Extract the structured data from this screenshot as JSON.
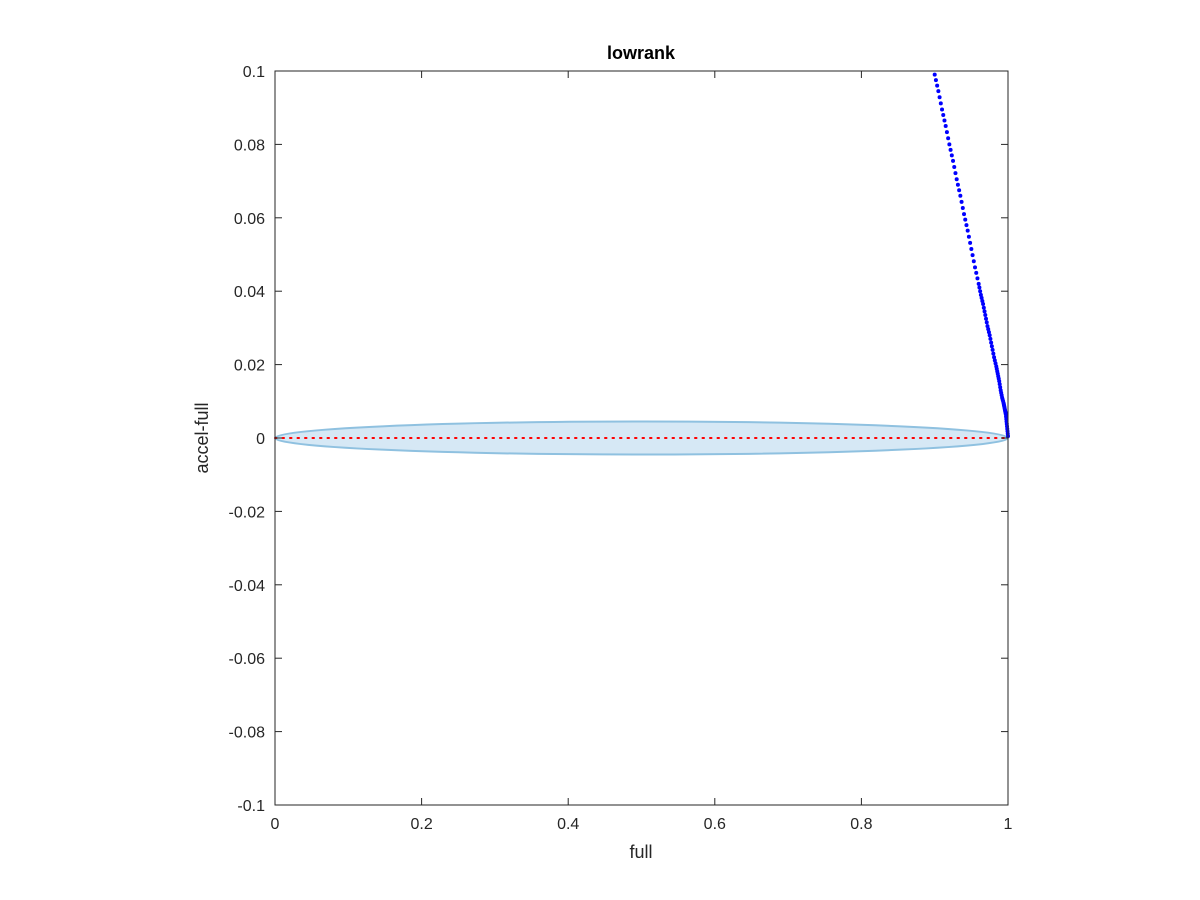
{
  "chart_data": {
    "type": "scatter",
    "title": "lowrank",
    "xlabel": "full",
    "ylabel": "accel-full",
    "xlim": [
      0,
      1
    ],
    "ylim": [
      -0.1,
      0.1
    ],
    "x_ticks": [
      "0",
      "0.2",
      "0.4",
      "0.6",
      "0.8",
      "1"
    ],
    "x_tick_values": [
      0,
      0.2,
      0.4,
      0.6,
      0.8,
      1
    ],
    "y_ticks": [
      "-0.1",
      "-0.08",
      "-0.06",
      "-0.04",
      "-0.02",
      "0",
      "0.02",
      "0.04",
      "0.06",
      "0.08",
      "0.1"
    ],
    "y_tick_values": [
      -0.1,
      -0.08,
      -0.06,
      -0.04,
      -0.02,
      0,
      0.02,
      0.04,
      0.06,
      0.08,
      0.1
    ],
    "grid": false,
    "band": {
      "type": "filled-ellipse",
      "fill": "#d6e8f5",
      "stroke": "#8fc1e0",
      "center": [
        0.5,
        0
      ],
      "half_width": 0.5,
      "half_height": 0.0045
    },
    "reference_line": {
      "style": "dotted",
      "color": "#ff0000",
      "y": 0,
      "x_range": [
        0,
        1
      ]
    },
    "series": [
      {
        "color": "#0000ff",
        "marker": "dot",
        "x": [
          0.9,
          0.905,
          0.91,
          0.915,
          0.92,
          0.925,
          0.93,
          0.935,
          0.94,
          0.945,
          0.95,
          0.955,
          0.96,
          0.963,
          0.966,
          0.969,
          0.972,
          0.975,
          0.978,
          0.981,
          0.984,
          0.986,
          0.988,
          0.99,
          0.992,
          0.994,
          0.995,
          0.996,
          0.997,
          0.998,
          0.999,
          1.0
        ],
        "y": [
          0.099,
          0.0945,
          0.0895,
          0.085,
          0.08,
          0.0755,
          0.0705,
          0.066,
          0.061,
          0.0565,
          0.0515,
          0.0465,
          0.042,
          0.039,
          0.0365,
          0.0335,
          0.0305,
          0.028,
          0.025,
          0.022,
          0.0195,
          0.0175,
          0.0155,
          0.013,
          0.011,
          0.0095,
          0.0085,
          0.0075,
          0.0065,
          0.0045,
          0.0025,
          0.0005
        ]
      }
    ]
  }
}
